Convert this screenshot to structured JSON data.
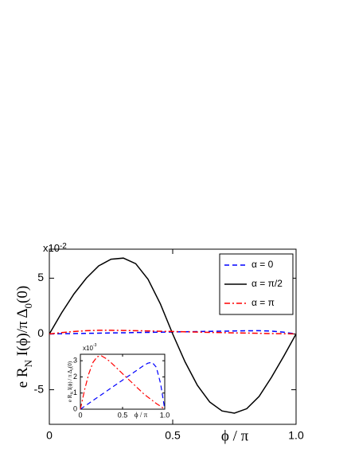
{
  "chart_data": [
    {
      "type": "line",
      "multiplier_base": "x10",
      "multiplier_exp": "-2",
      "x_label": "ϕ / π",
      "y_label_parts": [
        "e R",
        "N",
        " I(ϕ)/π Δ",
        "0",
        "(0)"
      ],
      "x": [
        0,
        0.05,
        0.1,
        0.15,
        0.2,
        0.25,
        0.3,
        0.35,
        0.4,
        0.45,
        0.5,
        0.55,
        0.6,
        0.65,
        0.7,
        0.75,
        0.8,
        0.85,
        0.9,
        0.95,
        1
      ],
      "series": [
        {
          "name": "α = 0",
          "color": "#0000ff",
          "dash": "dashed",
          "values": [
            0,
            0.018,
            0.036,
            0.054,
            0.072,
            0.09,
            0.108,
            0.126,
            0.144,
            0.162,
            0.18,
            0.198,
            0.216,
            0.234,
            0.252,
            0.27,
            0.285,
            0.29,
            0.26,
            0.16,
            0
          ]
        },
        {
          "name": "α = π/2",
          "color": "#000000",
          "dash": "solid",
          "values": [
            0,
            1.9,
            3.6,
            5.0,
            6.1,
            6.7,
            6.8,
            6.3,
            4.9,
            2.7,
            0,
            -2.5,
            -4.6,
            -6.1,
            -6.9,
            -7.1,
            -6.7,
            -5.6,
            -3.9,
            -2.0,
            0
          ]
        },
        {
          "name": "α = π",
          "color": "#ff0000",
          "dash": "dashdot",
          "values": [
            0,
            0.12,
            0.22,
            0.29,
            0.325,
            0.33,
            0.315,
            0.295,
            0.27,
            0.245,
            0.22,
            0.195,
            0.17,
            0.145,
            0.12,
            0.095,
            0.075,
            0.055,
            0.035,
            0.018,
            0
          ]
        }
      ],
      "xlim": [
        0,
        1
      ],
      "ylim": [
        -8.1,
        7.6
      ],
      "xticks": [
        0,
        0.5,
        {
          "value": 1,
          "label": "1.0"
        }
      ],
      "yticks": [
        -5,
        0,
        5
      ],
      "legend": "upper right"
    },
    {
      "type": "line",
      "multiplier_base": "x10",
      "multiplier_exp": "-3",
      "x_label": "ϕ / π",
      "y_label_parts": [
        "e R",
        "N",
        " I(ϕ) / π Δ",
        "0",
        "(0)"
      ],
      "x": [
        0,
        0.05,
        0.1,
        0.15,
        0.2,
        0.25,
        0.3,
        0.35,
        0.4,
        0.45,
        0.5,
        0.55,
        0.6,
        0.65,
        0.7,
        0.75,
        0.8,
        0.85,
        0.9,
        0.95,
        1
      ],
      "series": [
        {
          "color": "#0000ff",
          "dash": "dashed",
          "values": [
            0,
            0.18,
            0.36,
            0.54,
            0.72,
            0.9,
            1.08,
            1.26,
            1.44,
            1.62,
            1.8,
            1.98,
            2.16,
            2.34,
            2.52,
            2.7,
            2.85,
            2.9,
            2.6,
            1.6,
            0
          ]
        },
        {
          "color": "#ff0000",
          "dash": "dashdot",
          "values": [
            0,
            1.2,
            2.2,
            2.9,
            3.25,
            3.3,
            3.15,
            2.95,
            2.7,
            2.45,
            2.2,
            1.95,
            1.7,
            1.45,
            1.2,
            0.95,
            0.75,
            0.55,
            0.35,
            0.18,
            0
          ]
        }
      ],
      "xlim": [
        0,
        1
      ],
      "ylim": [
        0,
        3.4
      ],
      "xticks": [
        0,
        0.5,
        {
          "value": 1,
          "label": "1.0"
        }
      ],
      "yticks": [
        0,
        1,
        2,
        3
      ]
    }
  ]
}
